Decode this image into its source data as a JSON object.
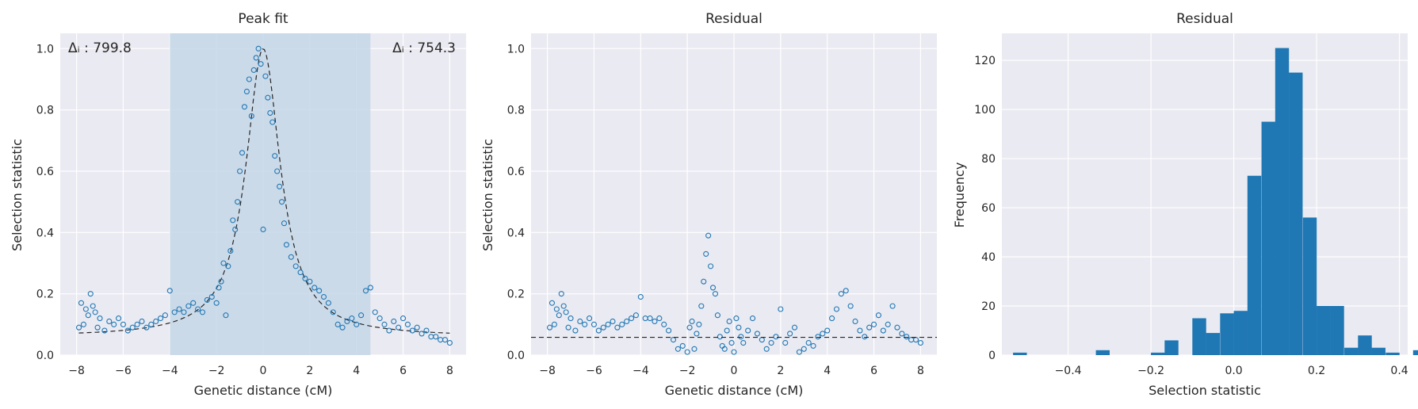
{
  "colors": {
    "panel_bg": "#eaeaf2",
    "grid": "#ffffff",
    "marker": "#1f77b4",
    "bar": "#1f77b4",
    "span": "#c5d7e8",
    "fit_line": "#262626"
  },
  "panels": [
    {
      "title": "Peak fit",
      "xlabel": "Genetic distance (cM)",
      "ylabel": "Selection statistic",
      "annot_left": "Δᵢ : 799.8",
      "annot_right": "Δᵢ : 754.3"
    },
    {
      "title": "Residual",
      "xlabel": "Genetic distance (cM)",
      "ylabel": "Selection statistic"
    },
    {
      "title": "Residual",
      "xlabel": "Selection statistic",
      "ylabel": "Frequency"
    }
  ],
  "chart_data": [
    {
      "type": "scatter",
      "title": "Peak fit",
      "xlabel": "Genetic distance (cM)",
      "ylabel": "Selection statistic",
      "xlim": [
        -8.7,
        8.7
      ],
      "ylim": [
        0,
        1.05
      ],
      "xticks": [
        -8,
        -6,
        -4,
        -2,
        0,
        2,
        4,
        6,
        8
      ],
      "yticks": [
        0.0,
        0.2,
        0.4,
        0.6,
        0.8,
        1.0
      ],
      "grid": true,
      "shaded_span": [
        -4.0,
        4.6
      ],
      "fit_curve": {
        "style": "dashed",
        "baseline": 0.06,
        "peak": 1.0,
        "center": 0.0,
        "width": 0.9
      },
      "points": [
        [
          -7.9,
          0.09
        ],
        [
          -7.8,
          0.17
        ],
        [
          -7.7,
          0.1
        ],
        [
          -7.6,
          0.15
        ],
        [
          -7.5,
          0.13
        ],
        [
          -7.4,
          0.2
        ],
        [
          -7.3,
          0.16
        ],
        [
          -7.2,
          0.14
        ],
        [
          -7.1,
          0.09
        ],
        [
          -7.0,
          0.12
        ],
        [
          -6.8,
          0.08
        ],
        [
          -6.6,
          0.11
        ],
        [
          -6.4,
          0.1
        ],
        [
          -6.2,
          0.12
        ],
        [
          -6.0,
          0.1
        ],
        [
          -5.8,
          0.08
        ],
        [
          -5.6,
          0.09
        ],
        [
          -5.4,
          0.1
        ],
        [
          -5.2,
          0.11
        ],
        [
          -5.0,
          0.09
        ],
        [
          -4.8,
          0.1
        ],
        [
          -4.6,
          0.11
        ],
        [
          -4.4,
          0.12
        ],
        [
          -4.2,
          0.13
        ],
        [
          -4.0,
          0.21
        ],
        [
          -3.8,
          0.14
        ],
        [
          -3.6,
          0.15
        ],
        [
          -3.4,
          0.14
        ],
        [
          -3.2,
          0.16
        ],
        [
          -3.0,
          0.17
        ],
        [
          -2.8,
          0.15
        ],
        [
          -2.6,
          0.14
        ],
        [
          -2.4,
          0.18
        ],
        [
          -2.2,
          0.19
        ],
        [
          -2.0,
          0.17
        ],
        [
          -1.9,
          0.22
        ],
        [
          -1.8,
          0.24
        ],
        [
          -1.7,
          0.3
        ],
        [
          -1.6,
          0.13
        ],
        [
          -1.5,
          0.29
        ],
        [
          -1.4,
          0.34
        ],
        [
          -1.3,
          0.44
        ],
        [
          -1.2,
          0.41
        ],
        [
          -1.1,
          0.5
        ],
        [
          -1.0,
          0.6
        ],
        [
          -0.9,
          0.66
        ],
        [
          -0.8,
          0.81
        ],
        [
          -0.7,
          0.86
        ],
        [
          -0.6,
          0.9
        ],
        [
          -0.5,
          0.78
        ],
        [
          -0.4,
          0.93
        ],
        [
          -0.3,
          0.97
        ],
        [
          -0.2,
          1.0
        ],
        [
          -0.1,
          0.95
        ],
        [
          0.0,
          0.41
        ],
        [
          0.1,
          0.91
        ],
        [
          0.2,
          0.84
        ],
        [
          0.3,
          0.79
        ],
        [
          0.4,
          0.76
        ],
        [
          0.5,
          0.65
        ],
        [
          0.6,
          0.6
        ],
        [
          0.7,
          0.55
        ],
        [
          0.8,
          0.5
        ],
        [
          0.9,
          0.43
        ],
        [
          1.0,
          0.36
        ],
        [
          1.2,
          0.32
        ],
        [
          1.4,
          0.29
        ],
        [
          1.6,
          0.27
        ],
        [
          1.8,
          0.25
        ],
        [
          2.0,
          0.24
        ],
        [
          2.2,
          0.22
        ],
        [
          2.4,
          0.21
        ],
        [
          2.6,
          0.19
        ],
        [
          2.8,
          0.17
        ],
        [
          3.0,
          0.14
        ],
        [
          3.2,
          0.1
        ],
        [
          3.4,
          0.09
        ],
        [
          3.6,
          0.11
        ],
        [
          3.8,
          0.12
        ],
        [
          4.0,
          0.1
        ],
        [
          4.2,
          0.13
        ],
        [
          4.4,
          0.21
        ],
        [
          4.6,
          0.22
        ],
        [
          4.8,
          0.14
        ],
        [
          5.0,
          0.12
        ],
        [
          5.2,
          0.1
        ],
        [
          5.4,
          0.08
        ],
        [
          5.6,
          0.11
        ],
        [
          5.8,
          0.09
        ],
        [
          6.0,
          0.12
        ],
        [
          6.2,
          0.1
        ],
        [
          6.4,
          0.08
        ],
        [
          6.6,
          0.09
        ],
        [
          6.8,
          0.07
        ],
        [
          7.0,
          0.08
        ],
        [
          7.2,
          0.06
        ],
        [
          7.4,
          0.06
        ],
        [
          7.6,
          0.05
        ],
        [
          7.8,
          0.05
        ],
        [
          8.0,
          0.04
        ]
      ]
    },
    {
      "type": "scatter",
      "title": "Residual",
      "xlabel": "Genetic distance (cM)",
      "ylabel": "Selection statistic",
      "xlim": [
        -8.7,
        8.7
      ],
      "ylim": [
        0,
        1.05
      ],
      "xticks": [
        -8,
        -6,
        -4,
        -2,
        0,
        2,
        4,
        6,
        8
      ],
      "yticks": [
        0.0,
        0.2,
        0.4,
        0.6,
        0.8,
        1.0
      ],
      "grid": true,
      "hline": {
        "y": 0.058,
        "style": "dashed"
      },
      "points": [
        [
          -7.9,
          0.09
        ],
        [
          -7.8,
          0.17
        ],
        [
          -7.7,
          0.1
        ],
        [
          -7.6,
          0.15
        ],
        [
          -7.5,
          0.13
        ],
        [
          -7.4,
          0.2
        ],
        [
          -7.3,
          0.16
        ],
        [
          -7.2,
          0.14
        ],
        [
          -7.1,
          0.09
        ],
        [
          -7.0,
          0.12
        ],
        [
          -6.8,
          0.08
        ],
        [
          -6.6,
          0.11
        ],
        [
          -6.4,
          0.1
        ],
        [
          -6.2,
          0.12
        ],
        [
          -6.0,
          0.1
        ],
        [
          -5.8,
          0.08
        ],
        [
          -5.6,
          0.09
        ],
        [
          -5.4,
          0.1
        ],
        [
          -5.2,
          0.11
        ],
        [
          -5.0,
          0.09
        ],
        [
          -4.8,
          0.1
        ],
        [
          -4.6,
          0.11
        ],
        [
          -4.4,
          0.12
        ],
        [
          -4.2,
          0.13
        ],
        [
          -4.0,
          0.19
        ],
        [
          -3.8,
          0.12
        ],
        [
          -3.6,
          0.12
        ],
        [
          -3.4,
          0.11
        ],
        [
          -3.2,
          0.12
        ],
        [
          -3.0,
          0.1
        ],
        [
          -2.8,
          0.08
        ],
        [
          -2.6,
          0.05
        ],
        [
          -2.4,
          0.02
        ],
        [
          -2.2,
          0.03
        ],
        [
          -2.0,
          0.01
        ],
        [
          -1.9,
          0.09
        ],
        [
          -1.8,
          0.11
        ],
        [
          -1.7,
          0.02
        ],
        [
          -1.6,
          0.07
        ],
        [
          -1.5,
          0.1
        ],
        [
          -1.4,
          0.16
        ],
        [
          -1.3,
          0.24
        ],
        [
          -1.2,
          0.33
        ],
        [
          -1.1,
          0.39
        ],
        [
          -1.0,
          0.29
        ],
        [
          -0.9,
          0.22
        ],
        [
          -0.8,
          0.2
        ],
        [
          -0.7,
          0.13
        ],
        [
          -0.6,
          0.06
        ],
        [
          -0.5,
          0.03
        ],
        [
          -0.4,
          0.02
        ],
        [
          -0.3,
          0.08
        ],
        [
          -0.2,
          0.11
        ],
        [
          -0.1,
          0.04
        ],
        [
          0.0,
          0.01
        ],
        [
          0.1,
          0.12
        ],
        [
          0.2,
          0.09
        ],
        [
          0.3,
          0.06
        ],
        [
          0.4,
          0.04
        ],
        [
          0.6,
          0.08
        ],
        [
          0.8,
          0.12
        ],
        [
          1.0,
          0.07
        ],
        [
          1.2,
          0.05
        ],
        [
          1.4,
          0.02
        ],
        [
          1.6,
          0.04
        ],
        [
          1.8,
          0.06
        ],
        [
          2.0,
          0.15
        ],
        [
          2.2,
          0.04
        ],
        [
          2.4,
          0.07
        ],
        [
          2.6,
          0.09
        ],
        [
          2.8,
          0.01
        ],
        [
          3.0,
          0.02
        ],
        [
          3.2,
          0.04
        ],
        [
          3.4,
          0.03
        ],
        [
          3.6,
          0.06
        ],
        [
          3.8,
          0.07
        ],
        [
          4.0,
          0.08
        ],
        [
          4.2,
          0.12
        ],
        [
          4.4,
          0.15
        ],
        [
          4.6,
          0.2
        ],
        [
          4.8,
          0.21
        ],
        [
          5.0,
          0.16
        ],
        [
          5.2,
          0.11
        ],
        [
          5.4,
          0.08
        ],
        [
          5.6,
          0.06
        ],
        [
          5.8,
          0.09
        ],
        [
          6.0,
          0.1
        ],
        [
          6.2,
          0.13
        ],
        [
          6.4,
          0.08
        ],
        [
          6.6,
          0.1
        ],
        [
          6.8,
          0.16
        ],
        [
          7.0,
          0.09
        ],
        [
          7.2,
          0.07
        ],
        [
          7.4,
          0.06
        ],
        [
          7.6,
          0.05
        ],
        [
          7.8,
          0.05
        ],
        [
          8.0,
          0.04
        ]
      ]
    },
    {
      "type": "bar",
      "title": "Residual",
      "xlabel": "Selection statistic",
      "ylabel": "Frequency",
      "xlim": [
        -0.56,
        0.42
      ],
      "ylim": [
        0,
        131
      ],
      "xticks": [
        -0.4,
        -0.2,
        0.0,
        0.2,
        0.4
      ],
      "yticks": [
        0,
        20,
        40,
        60,
        80,
        100,
        120
      ],
      "grid": true,
      "bin_width": 0.0333,
      "bins": [
        [
          -0.533,
          1
        ],
        [
          -0.5,
          0
        ],
        [
          -0.467,
          0
        ],
        [
          -0.433,
          0
        ],
        [
          -0.4,
          0
        ],
        [
          -0.367,
          0
        ],
        [
          -0.333,
          2
        ],
        [
          -0.3,
          0
        ],
        [
          -0.267,
          0
        ],
        [
          -0.233,
          0
        ],
        [
          -0.2,
          1
        ],
        [
          -0.167,
          6
        ],
        [
          -0.133,
          0
        ],
        [
          -0.1,
          15
        ],
        [
          -0.067,
          9
        ],
        [
          -0.033,
          17
        ],
        [
          0.0,
          18
        ],
        [
          0.033,
          73
        ],
        [
          0.067,
          95
        ],
        [
          0.1,
          125
        ],
        [
          0.133,
          115
        ],
        [
          0.167,
          56
        ],
        [
          0.2,
          20
        ],
        [
          0.233,
          20
        ],
        [
          0.267,
          3
        ],
        [
          0.3,
          8
        ],
        [
          0.333,
          3
        ],
        [
          0.367,
          1
        ],
        [
          0.4,
          0
        ],
        [
          0.433,
          2
        ]
      ]
    }
  ]
}
